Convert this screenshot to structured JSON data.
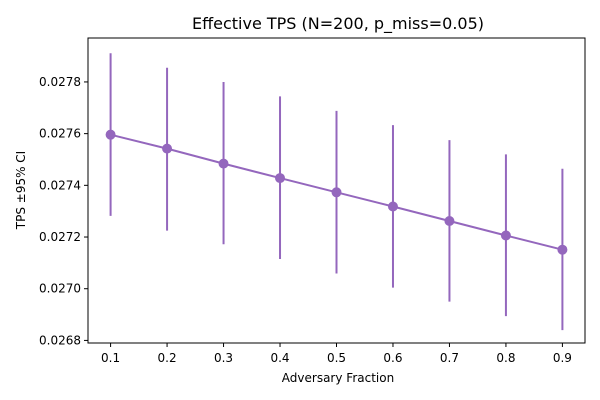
{
  "chart_data": {
    "type": "line",
    "title": "Effective TPS (N=200, p_miss=0.05)",
    "xlabel": "Adversary Fraction",
    "ylabel": "TPS ±95% CI",
    "x": [
      0.1,
      0.2,
      0.3,
      0.4,
      0.5,
      0.6,
      0.7,
      0.8,
      0.9
    ],
    "x_ticks": [
      "0.1",
      "0.2",
      "0.3",
      "0.4",
      "0.5",
      "0.6",
      "0.7",
      "0.8",
      "0.9"
    ],
    "y_ticks": [
      "0.0268",
      "0.0270",
      "0.0272",
      "0.0274",
      "0.0276",
      "0.0278"
    ],
    "xlim": [
      0.06,
      0.94
    ],
    "ylim": [
      0.02679,
      0.02797
    ],
    "grid": false,
    "series": [
      {
        "color": "#9467bd",
        "values": [
          0.027596,
          0.027542,
          0.027484,
          0.027428,
          0.027373,
          0.027318,
          0.027262,
          0.027206,
          0.027151
        ],
        "ci_low": [
          0.027282,
          0.027225,
          0.027172,
          0.027115,
          0.027059,
          0.027004,
          0.02695,
          0.026894,
          0.02684
        ],
        "ci_high": [
          0.027911,
          0.027855,
          0.0278,
          0.027744,
          0.027688,
          0.027633,
          0.027575,
          0.02752,
          0.027464
        ]
      }
    ]
  }
}
